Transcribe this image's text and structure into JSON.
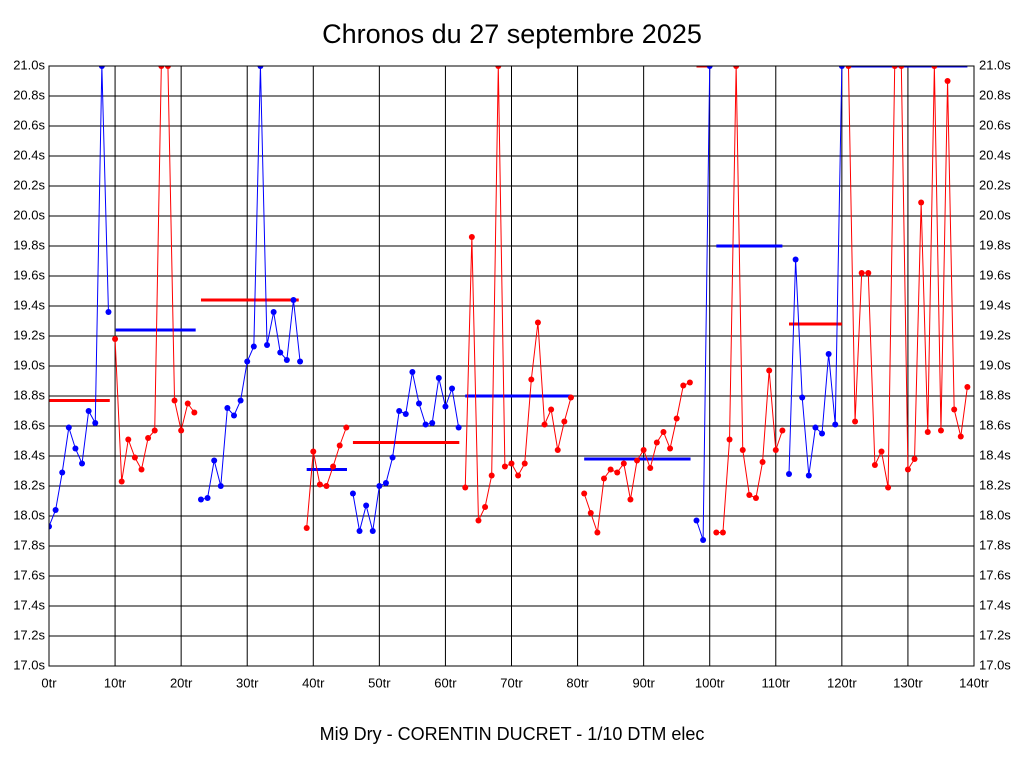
{
  "chart_data": {
    "type": "line",
    "title": "Chronos du 27 septembre 2025",
    "footer": "Mi9 Dry - CORENTIN DUCRET - 1/10 DTM elec",
    "grid": true,
    "xlim": [
      0,
      140
    ],
    "xticks": [
      {
        "value": 0,
        "label": "0tr"
      },
      {
        "value": 10,
        "label": "10tr"
      },
      {
        "value": 20,
        "label": "20tr"
      },
      {
        "value": 30,
        "label": "30tr"
      },
      {
        "value": 40,
        "label": "40tr"
      },
      {
        "value": 50,
        "label": "50tr"
      },
      {
        "value": 60,
        "label": "60tr"
      },
      {
        "value": 70,
        "label": "70tr"
      },
      {
        "value": 80,
        "label": "80tr"
      },
      {
        "value": 90,
        "label": "90tr"
      },
      {
        "value": 100,
        "label": "100tr"
      },
      {
        "value": 110,
        "label": "110tr"
      },
      {
        "value": 120,
        "label": "120tr"
      },
      {
        "value": 130,
        "label": "130tr"
      },
      {
        "value": 140,
        "label": "140tr"
      }
    ],
    "ylim": [
      17.0,
      21.0
    ],
    "yticks": [
      {
        "value": 17.0,
        "label": "17.0s"
      },
      {
        "value": 17.2,
        "label": "17.2s"
      },
      {
        "value": 17.4,
        "label": "17.4s"
      },
      {
        "value": 17.6,
        "label": "17.6s"
      },
      {
        "value": 17.8,
        "label": "17.8s"
      },
      {
        "value": 18.0,
        "label": "18.0s"
      },
      {
        "value": 18.2,
        "label": "18.2s"
      },
      {
        "value": 18.4,
        "label": "18.4s"
      },
      {
        "value": 18.6,
        "label": "18.6s"
      },
      {
        "value": 18.8,
        "label": "18.8s"
      },
      {
        "value": 19.0,
        "label": "19.0s"
      },
      {
        "value": 19.2,
        "label": "19.2s"
      },
      {
        "value": 19.4,
        "label": "19.4s"
      },
      {
        "value": 19.6,
        "label": "19.6s"
      },
      {
        "value": 19.8,
        "label": "19.8s"
      },
      {
        "value": 20.0,
        "label": "20.0s"
      },
      {
        "value": 20.2,
        "label": "20.2s"
      },
      {
        "value": 20.4,
        "label": "20.4s"
      },
      {
        "value": 20.6,
        "label": "20.6s"
      },
      {
        "value": 20.8,
        "label": "20.8s"
      },
      {
        "value": 21.0,
        "label": "21.0s"
      }
    ],
    "series": [
      {
        "color": "#0000ff",
        "x": [
          0,
          1,
          2,
          3,
          4,
          5,
          6,
          7,
          8,
          9
        ],
        "values": [
          17.93,
          18.04,
          18.29,
          18.59,
          18.45,
          18.35,
          18.7,
          18.62,
          21.0,
          19.36
        ]
      },
      {
        "color": "#ff0000",
        "x": [
          10,
          11,
          12,
          13,
          14,
          15,
          16,
          17,
          18,
          19,
          20,
          21,
          22
        ],
        "values": [
          19.18,
          18.23,
          18.51,
          18.39,
          18.31,
          18.52,
          18.57,
          21.0,
          21.0,
          18.77,
          18.57,
          18.75,
          18.69
        ]
      },
      {
        "color": "#0000ff",
        "x": [
          23,
          24,
          25,
          26,
          27,
          28,
          29,
          30,
          31,
          32,
          33,
          34,
          35,
          36,
          37,
          38
        ],
        "values": [
          18.11,
          18.12,
          18.37,
          18.2,
          18.72,
          18.67,
          18.77,
          19.03,
          19.13,
          21.0,
          19.14,
          19.36,
          19.09,
          19.04,
          19.44,
          19.03
        ]
      },
      {
        "color": "#ff0000",
        "x": [
          39,
          40,
          41,
          42,
          43,
          44,
          45
        ],
        "values": [
          17.92,
          18.43,
          18.21,
          18.2,
          18.33,
          18.47,
          18.59
        ]
      },
      {
        "color": "#0000ff",
        "x": [
          46,
          47,
          48,
          49,
          50,
          51,
          52,
          53,
          54,
          55,
          56,
          57,
          58,
          59,
          60,
          61,
          62
        ],
        "values": [
          18.15,
          17.9,
          18.07,
          17.9,
          18.2,
          18.22,
          18.39,
          18.7,
          18.68,
          18.96,
          18.75,
          18.61,
          18.62,
          18.92,
          18.73,
          18.85,
          18.59
        ]
      },
      {
        "color": "#ff0000",
        "x": [
          63,
          64,
          65,
          66,
          67,
          68,
          69,
          70,
          71,
          72,
          73,
          74,
          75,
          76,
          77,
          78,
          79
        ],
        "values": [
          18.19,
          19.86,
          17.97,
          18.06,
          18.27,
          21.0,
          18.33,
          18.35,
          18.27,
          18.35,
          18.91,
          19.29,
          18.61,
          18.71,
          18.44,
          18.63,
          18.79
        ]
      },
      {
        "color": "#ff0000",
        "x": [
          81,
          82,
          83,
          84,
          85,
          86,
          87,
          88,
          89,
          90,
          91,
          92,
          93,
          94,
          95,
          96,
          97
        ],
        "values": [
          18.15,
          18.02,
          17.89,
          18.25,
          18.31,
          18.29,
          18.35,
          18.11,
          18.37,
          18.44,
          18.32,
          18.49,
          18.56,
          18.45,
          18.65,
          18.87,
          18.89
        ]
      },
      {
        "color": "#0000ff",
        "x": [
          98,
          99,
          100
        ],
        "values": [
          17.97,
          17.84,
          21.0
        ]
      },
      {
        "color": "#ff0000",
        "x": [
          101,
          102,
          103,
          104,
          105,
          106,
          107,
          108,
          109,
          110,
          111
        ],
        "values": [
          17.89,
          17.89,
          18.51,
          21.0,
          18.44,
          18.14,
          18.12,
          18.36,
          18.97,
          18.44,
          18.57
        ]
      },
      {
        "color": "#0000ff",
        "x": [
          112,
          113,
          114,
          115,
          116,
          117,
          118,
          119,
          120
        ],
        "values": [
          18.28,
          19.71,
          18.79,
          18.27,
          18.59,
          18.55,
          19.08,
          18.61,
          21.0
        ]
      },
      {
        "color": "#ff0000",
        "x": [
          121,
          122,
          123,
          124,
          125,
          126,
          127,
          128,
          129,
          130,
          131,
          132,
          133,
          134,
          135,
          136,
          137,
          138,
          139
        ],
        "values": [
          21.0,
          18.63,
          19.62,
          19.62,
          18.34,
          18.43,
          18.19,
          21.0,
          21.0,
          18.31,
          18.38,
          20.09,
          18.56,
          21.0,
          18.57,
          20.9,
          18.71,
          18.53,
          18.86
        ]
      }
    ],
    "average_lines": [
      {
        "color": "#ff0000",
        "x": [
          0,
          9.2
        ],
        "value": 18.77
      },
      {
        "color": "#0000ff",
        "x": [
          10.1,
          22.2
        ],
        "value": 19.24
      },
      {
        "color": "#ff0000",
        "x": [
          23,
          37.8
        ],
        "value": 19.44
      },
      {
        "color": "#0000ff",
        "x": [
          39,
          45.1
        ],
        "value": 18.31
      },
      {
        "color": "#ff0000",
        "x": [
          46,
          62.1
        ],
        "value": 18.49
      },
      {
        "color": "#0000ff",
        "x": [
          63,
          79
        ],
        "value": 18.8
      },
      {
        "color": "#0000ff",
        "x": [
          81,
          97.1
        ],
        "value": 18.38
      },
      {
        "color": "#ff0000",
        "x": [
          98,
          99.9
        ],
        "value": 21.0
      },
      {
        "color": "#0000ff",
        "x": [
          101,
          111
        ],
        "value": 19.8
      },
      {
        "color": "#ff0000",
        "x": [
          112,
          120
        ],
        "value": 19.28
      },
      {
        "color": "#0000ff",
        "x": [
          121,
          139
        ],
        "value": 21.0
      }
    ]
  }
}
